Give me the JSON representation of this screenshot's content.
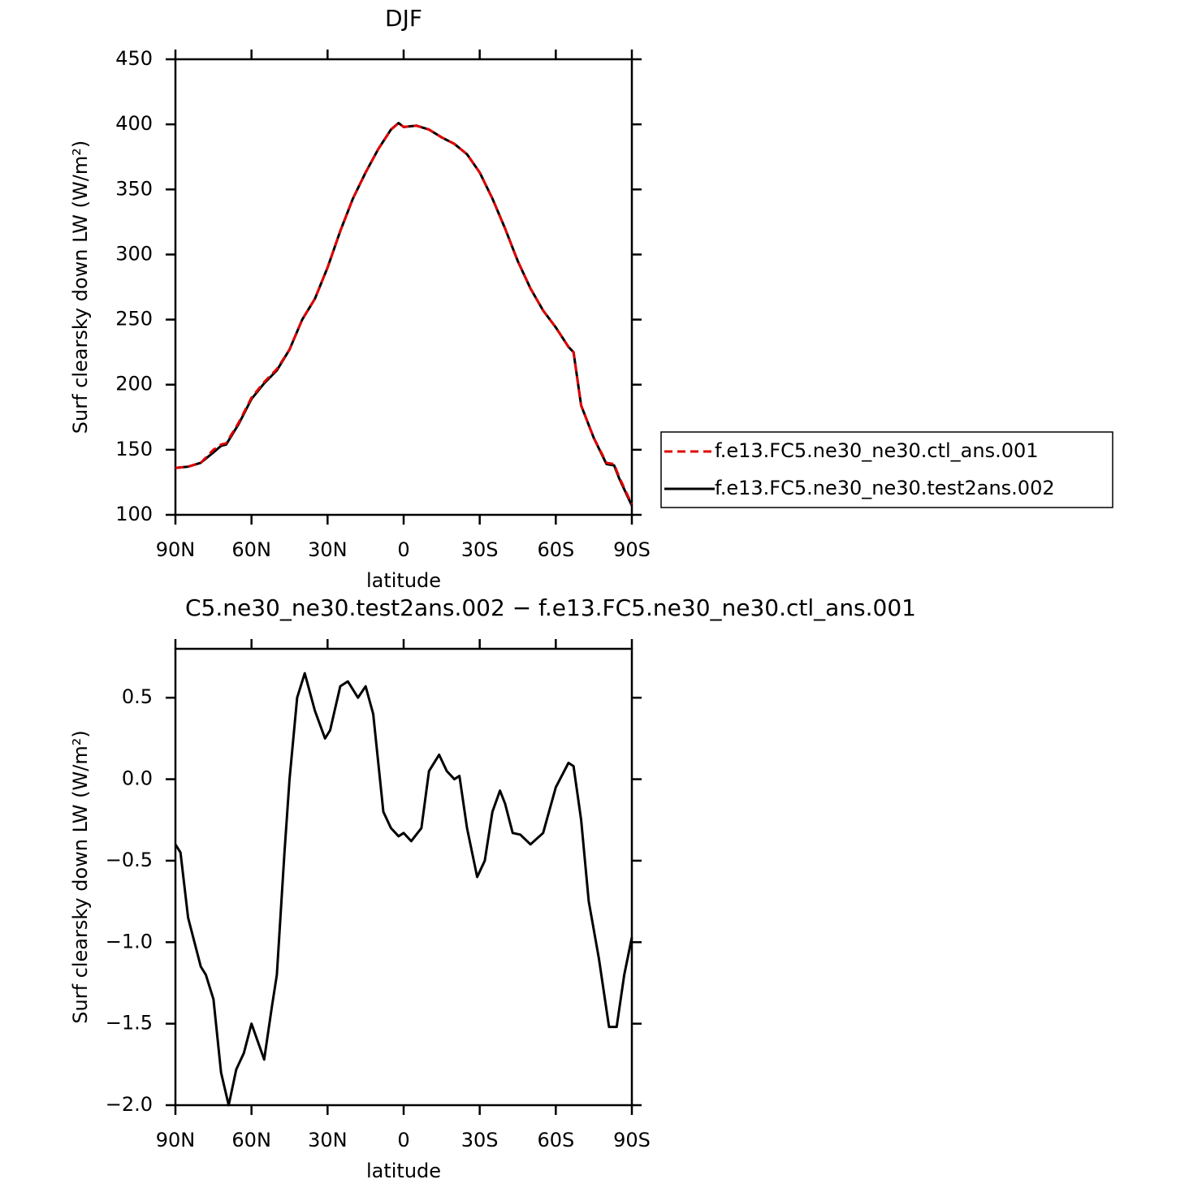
{
  "chart_data": [
    {
      "type": "line",
      "title": "DJF",
      "xlabel": "latitude",
      "ylabel": "Surf clearsky down LW (W/m²)",
      "xlim": [
        90,
        -90
      ],
      "ylim": [
        100,
        450
      ],
      "xticks": [
        {
          "value": 90,
          "label": "90N"
        },
        {
          "value": 60,
          "label": "60N"
        },
        {
          "value": 30,
          "label": "30N"
        },
        0,
        {
          "value": -30,
          "label": "30S"
        },
        {
          "value": -60,
          "label": "60S"
        },
        {
          "value": -90,
          "label": "90S"
        }
      ],
      "yticks": [
        100,
        150,
        200,
        250,
        300,
        350,
        400,
        450
      ],
      "x": [
        90,
        85,
        80,
        75,
        72,
        70,
        65,
        60,
        55,
        50,
        45,
        40,
        35,
        30,
        25,
        20,
        15,
        10,
        5,
        2,
        0,
        -5,
        -10,
        -15,
        -20,
        -25,
        -30,
        -35,
        -40,
        -45,
        -50,
        -55,
        -60,
        -65,
        -67,
        -70,
        -75,
        -80,
        -83,
        -85,
        -90
      ],
      "legend": "right",
      "series": [
        {
          "name": "f.e13.FC5.ne30_ne30.ctl_ans.001",
          "color": "#e00000",
          "dash": true,
          "values": [
            136,
            137,
            140,
            150,
            154,
            155,
            171,
            190,
            202,
            212,
            227,
            250,
            266,
            290,
            318,
            343,
            363,
            381,
            396,
            401,
            398,
            399,
            396,
            390,
            385,
            377,
            363,
            343,
            320,
            295,
            274,
            257,
            244,
            229,
            225,
            184,
            159,
            140,
            139,
            129,
            108
          ]
        },
        {
          "name": "f.e13.FC5.ne30_ne30.test2ans.002",
          "color": "#000000",
          "dash": false,
          "values": [
            136,
            137,
            140,
            148,
            153,
            154,
            170,
            189,
            201,
            211,
            227,
            250,
            266,
            290,
            318,
            343,
            363,
            381,
            396,
            401,
            398,
            399,
            396,
            390,
            385,
            377,
            363,
            343,
            320,
            295,
            274,
            257,
            244,
            229,
            225,
            184,
            159,
            139,
            138,
            128,
            107
          ]
        }
      ]
    },
    {
      "type": "line",
      "title": "C5.ne30_ne30.test2ans.002 − f.e13.FC5.ne30_ne30.ctl_ans.001",
      "xlabel": "latitude",
      "ylabel": "Surf clearsky down LW (W/m²)",
      "xlim": [
        90,
        -90
      ],
      "ylim": [
        -2,
        0.8
      ],
      "xticks": [
        {
          "value": 90,
          "label": "90N"
        },
        {
          "value": 60,
          "label": "60N"
        },
        {
          "value": 30,
          "label": "30N"
        },
        0,
        {
          "value": -30,
          "label": "30S"
        },
        {
          "value": -60,
          "label": "60S"
        },
        {
          "value": -90,
          "label": "90S"
        }
      ],
      "yticks": [
        0.5,
        {
          "value": 0,
          "label": "0.0"
        },
        {
          "value": -0.5,
          "label": "−0.5"
        },
        {
          "value": -1,
          "label": "−1.0"
        },
        {
          "value": -1.5,
          "label": "−1.5"
        },
        {
          "value": -2,
          "label": "−2.0"
        }
      ],
      "x": [
        90,
        88,
        85,
        80,
        78,
        75,
        72,
        69,
        66,
        63,
        60,
        55,
        52,
        50,
        47,
        45,
        42,
        39,
        35,
        31,
        29,
        25,
        22,
        18,
        15,
        12,
        8,
        5,
        2,
        0,
        -3,
        -7,
        -10,
        -14,
        -17,
        -20,
        -22,
        -25,
        -29,
        -32,
        -35,
        -38,
        -40,
        -43,
        -46,
        -50,
        -55,
        -60,
        -65,
        -67,
        -70,
        -73,
        -77,
        -81,
        -84,
        -87,
        -90
      ],
      "series": [
        {
          "color": "#000000",
          "dash": false,
          "values": [
            -0.4,
            -0.45,
            -0.85,
            -1.15,
            -1.2,
            -1.35,
            -1.8,
            -2.0,
            -1.78,
            -1.68,
            -1.5,
            -1.72,
            -1.4,
            -1.2,
            -0.45,
            0.0,
            0.5,
            0.65,
            0.42,
            0.25,
            0.3,
            0.57,
            0.6,
            0.5,
            0.57,
            0.4,
            -0.2,
            -0.3,
            -0.35,
            -0.33,
            -0.38,
            -0.3,
            0.05,
            0.15,
            0.05,
            0.0,
            0.02,
            -0.3,
            -0.6,
            -0.5,
            -0.2,
            -0.07,
            -0.15,
            -0.33,
            -0.34,
            -0.4,
            -0.33,
            -0.05,
            0.1,
            0.08,
            -0.25,
            -0.75,
            -1.1,
            -1.52,
            -1.52,
            -1.2,
            -0.97
          ]
        }
      ]
    }
  ]
}
